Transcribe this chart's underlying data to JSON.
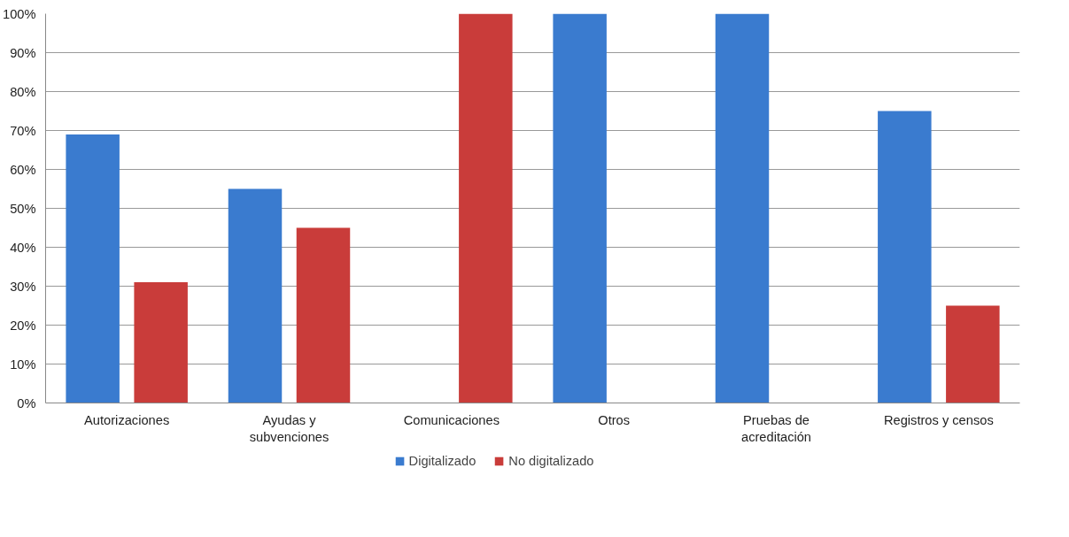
{
  "chart_data": {
    "type": "bar",
    "categories": [
      "Autorizaciones",
      "Ayudas y\nsubvenciones",
      "Comunicaciones",
      "Otros",
      "Pruebas de\nacreditación",
      "Registros y censos"
    ],
    "series": [
      {
        "name": "Digitalizado",
        "color": "#3a7bcf",
        "values": [
          69,
          55,
          0,
          100,
          100,
          75
        ]
      },
      {
        "name": "No digitalizado",
        "color": "#c93c3a",
        "values": [
          31,
          45,
          100,
          0,
          0,
          25
        ]
      }
    ],
    "ylim": [
      0,
      100
    ],
    "yticks": [
      {
        "value": 0,
        "label": "0%"
      },
      {
        "value": 10,
        "label": "10%"
      },
      {
        "value": 20,
        "label": "20%"
      },
      {
        "value": 30,
        "label": "30%"
      },
      {
        "value": 40,
        "label": "40%"
      },
      {
        "value": 50,
        "label": "50%"
      },
      {
        "value": 60,
        "label": "60%"
      },
      {
        "value": 70,
        "label": "70%"
      },
      {
        "value": 80,
        "label": "80%"
      },
      {
        "value": 90,
        "label": "90%"
      },
      {
        "value": 100,
        "label": "100%"
      }
    ],
    "grid": "y",
    "legend": "bottom"
  }
}
